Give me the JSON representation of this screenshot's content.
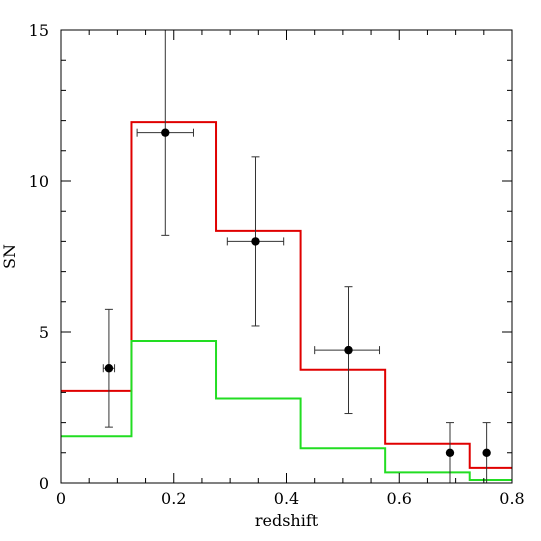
{
  "chart_data": {
    "type": "line",
    "title": "",
    "xlabel": "redshift",
    "ylabel": "SN",
    "xlim": [
      0,
      0.8
    ],
    "ylim": [
      0,
      15
    ],
    "grid": false,
    "x_ticks": [
      "0",
      "0.2",
      "0.4",
      "0.6",
      "0.8"
    ],
    "y_ticks": [
      "0",
      "5",
      "10",
      "15"
    ],
    "points": [
      {
        "x": 0.085,
        "y": 3.8,
        "xerr": [
          0.075,
          0.095
        ],
        "yerr": [
          1.85,
          5.75
        ]
      },
      {
        "x": 0.185,
        "y": 11.6,
        "xerr": [
          0.135,
          0.235
        ],
        "yerr": [
          8.2,
          15.0
        ]
      },
      {
        "x": 0.345,
        "y": 8.0,
        "xerr": [
          0.295,
          0.395
        ],
        "yerr": [
          5.2,
          10.8
        ]
      },
      {
        "x": 0.51,
        "y": 4.4,
        "xerr": [
          0.45,
          0.565
        ],
        "yerr": [
          2.3,
          6.5
        ]
      },
      {
        "x": 0.69,
        "y": 1.0,
        "xerr": [
          0.69,
          0.69
        ],
        "yerr": [
          0,
          2.0
        ]
      },
      {
        "x": 0.755,
        "y": 1.0,
        "xerr": [
          0.755,
          0.755
        ],
        "yerr": [
          0,
          2.0
        ]
      }
    ],
    "series": [
      {
        "color": "#e00000",
        "edges": [
          0,
          0.125,
          0.275,
          0.425,
          0.575,
          0.725,
          0.8
        ],
        "values": [
          3.05,
          11.95,
          8.35,
          3.75,
          1.3,
          0.5
        ]
      },
      {
        "color": "#22dd22",
        "edges": [
          0,
          0.125,
          0.275,
          0.425,
          0.575,
          0.725,
          0.8
        ],
        "values": [
          1.55,
          4.7,
          2.8,
          1.15,
          0.35,
          0.1
        ]
      }
    ]
  }
}
